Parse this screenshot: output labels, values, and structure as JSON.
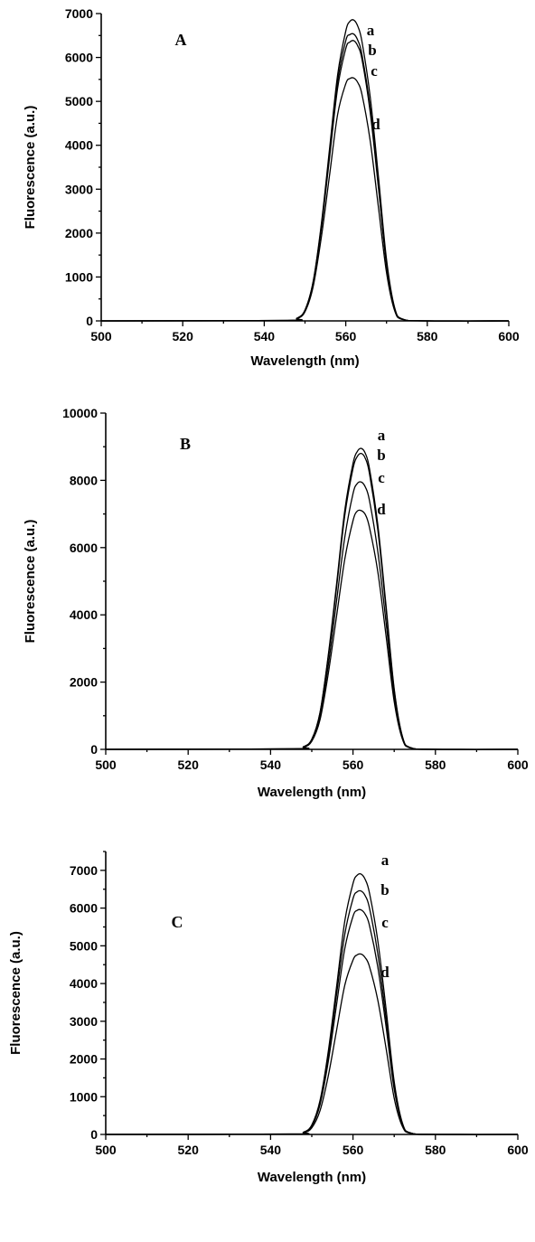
{
  "chart_data": [
    {
      "type": "line",
      "panel_label": "A",
      "xlabel": "Wavelength (nm)",
      "ylabel": "Fluorescence (a.u.)",
      "xlim": [
        500,
        600
      ],
      "ylim": [
        0,
        7000
      ],
      "xticks": [
        500,
        520,
        540,
        560,
        580,
        600
      ],
      "yticks": [
        0,
        1000,
        2000,
        3000,
        4000,
        5000,
        6000,
        7000
      ],
      "x": [
        500,
        545,
        548,
        550,
        552,
        554,
        556,
        558,
        560,
        561,
        562,
        563,
        564,
        566,
        568,
        570,
        572,
        574,
        580,
        600
      ],
      "series": [
        {
          "name": "a",
          "values": [
            0,
            10,
            60,
            250,
            900,
            2200,
            3900,
            5600,
            6600,
            6820,
            6850,
            6700,
            6350,
            5100,
            3300,
            1400,
            300,
            40,
            0,
            0
          ]
        },
        {
          "name": "b",
          "values": [
            0,
            10,
            60,
            240,
            880,
            2150,
            3800,
            5450,
            6380,
            6520,
            6530,
            6380,
            6050,
            4850,
            3100,
            1300,
            280,
            40,
            0,
            0
          ]
        },
        {
          "name": "c",
          "values": [
            0,
            10,
            58,
            235,
            860,
            2100,
            3700,
            5300,
            6200,
            6350,
            6380,
            6250,
            5950,
            4750,
            3050,
            1280,
            270,
            38,
            0,
            0
          ]
        },
        {
          "name": "d",
          "values": [
            0,
            8,
            50,
            210,
            780,
            1900,
            3300,
            4700,
            5400,
            5520,
            5530,
            5420,
            5150,
            4100,
            2600,
            1100,
            230,
            30,
            0,
            0
          ]
        }
      ]
    },
    {
      "type": "line",
      "panel_label": "B",
      "xlabel": "Wavelength (nm)",
      "ylabel": "Fluorescence (a.u.)",
      "xlim": [
        500,
        600
      ],
      "ylim": [
        0,
        10000
      ],
      "xticks": [
        500,
        520,
        540,
        560,
        580,
        600
      ],
      "yticks": [
        0,
        2000,
        4000,
        6000,
        8000,
        10000
      ],
      "x": [
        500,
        545,
        548,
        550,
        552,
        554,
        556,
        558,
        560,
        561,
        562,
        563,
        564,
        566,
        568,
        570,
        572,
        574,
        580,
        600
      ],
      "series": [
        {
          "name": "a",
          "values": [
            0,
            15,
            80,
            300,
            1100,
            2800,
            4900,
            7100,
            8500,
            8850,
            8950,
            8800,
            8350,
            6700,
            4300,
            1800,
            380,
            50,
            0,
            0
          ]
        },
        {
          "name": "b",
          "values": [
            0,
            15,
            78,
            295,
            1080,
            2750,
            4800,
            6950,
            8350,
            8700,
            8800,
            8650,
            8200,
            6550,
            4200,
            1750,
            370,
            50,
            0,
            0
          ]
        },
        {
          "name": "c",
          "values": [
            0,
            12,
            70,
            270,
            1000,
            2500,
            4400,
            6300,
            7600,
            7900,
            7950,
            7800,
            7400,
            5900,
            3800,
            1600,
            340,
            45,
            0,
            0
          ]
        },
        {
          "name": "d",
          "values": [
            0,
            11,
            62,
            240,
            880,
            2250,
            3950,
            5650,
            6800,
            7080,
            7100,
            6980,
            6600,
            5300,
            3400,
            1420,
            300,
            40,
            0,
            0
          ]
        }
      ]
    },
    {
      "type": "line",
      "panel_label": "C",
      "xlabel": "Wavelength (nm)",
      "ylabel": "Fluorescence (a.u.)",
      "xlim": [
        500,
        600
      ],
      "ylim": [
        0,
        7500
      ],
      "xticks": [
        500,
        520,
        540,
        560,
        580,
        600
      ],
      "yticks": [
        0,
        1000,
        2000,
        3000,
        4000,
        5000,
        6000,
        7000
      ],
      "x": [
        500,
        545,
        548,
        550,
        552,
        554,
        556,
        558,
        560,
        561,
        562,
        563,
        564,
        566,
        568,
        570,
        572,
        574,
        580,
        600
      ],
      "series": [
        {
          "name": "a",
          "values": [
            0,
            10,
            60,
            250,
            900,
            2200,
            3900,
            5650,
            6650,
            6870,
            6900,
            6750,
            6400,
            5150,
            3350,
            1400,
            300,
            40,
            0,
            0
          ]
        },
        {
          "name": "b",
          "values": [
            0,
            10,
            57,
            235,
            850,
            2080,
            3700,
            5300,
            6250,
            6430,
            6450,
            6320,
            6000,
            4800,
            3100,
            1300,
            280,
            38,
            0,
            0
          ]
        },
        {
          "name": "c",
          "values": [
            0,
            9,
            53,
            218,
            790,
            1930,
            3430,
            4920,
            5780,
            5940,
            5950,
            5830,
            5540,
            4450,
            2880,
            1200,
            260,
            35,
            0,
            0
          ]
        },
        {
          "name": "d",
          "values": [
            0,
            7,
            42,
            175,
            630,
            1550,
            2750,
            3950,
            4620,
            4760,
            4780,
            4680,
            4450,
            3570,
            2300,
            960,
            210,
            28,
            0,
            0
          ]
        }
      ]
    }
  ]
}
